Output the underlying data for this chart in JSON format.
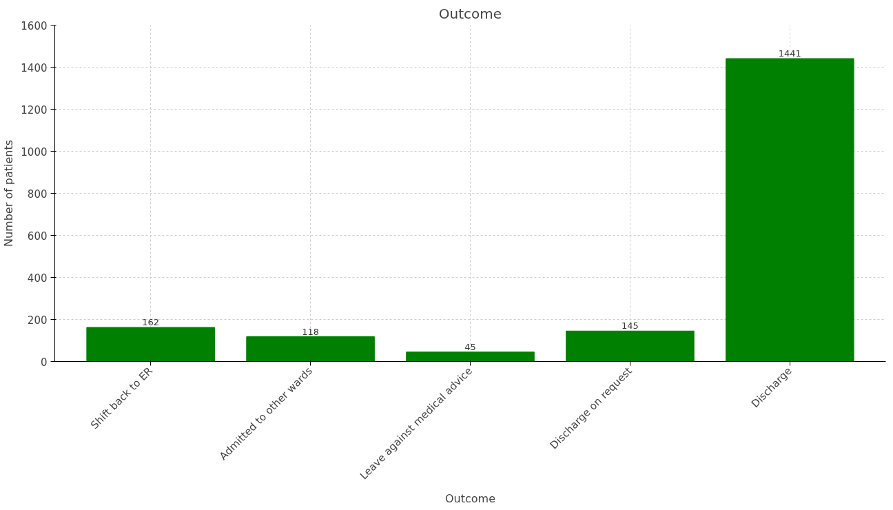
{
  "chart_data": {
    "type": "bar",
    "title": "Outcome",
    "xlabel": "Outcome",
    "ylabel": "Number of patients",
    "categories": [
      "Shift back to ER",
      "Admitted to other wards",
      "Leave against medical advice",
      "Discharge on request",
      "Discharge"
    ],
    "values": [
      162,
      118,
      45,
      145,
      1441
    ],
    "color": "#008000",
    "ylim": [
      0,
      1600
    ],
    "yticks": [
      0,
      200,
      400,
      600,
      800,
      1000,
      1200,
      1400,
      1600
    ],
    "grid": true,
    "data_labels": true
  }
}
